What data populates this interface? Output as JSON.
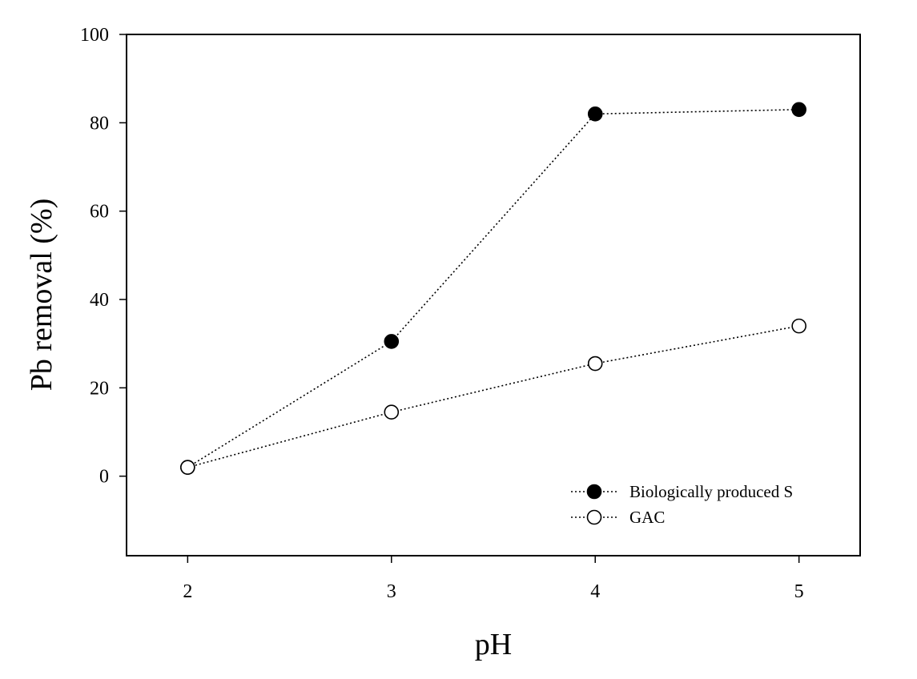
{
  "chart_data": {
    "type": "line",
    "title": "",
    "xlabel": "pH",
    "ylabel": "Pb removal (%)",
    "x": [
      2,
      3,
      4,
      5
    ],
    "x_ticks": [
      "2",
      "3",
      "4",
      "5"
    ],
    "y_ticks": [
      "0",
      "20",
      "40",
      "60",
      "80",
      "100"
    ],
    "xlim": [
      1.7,
      5.3
    ],
    "ylim": [
      -18,
      100
    ],
    "grid": false,
    "legend_position": "bottom-right",
    "series": [
      {
        "name": "Biologically produced S",
        "marker": "filled-circle",
        "line_style": "dotted",
        "color": "#000000",
        "values": [
          2,
          30.5,
          82,
          83
        ]
      },
      {
        "name": "GAC",
        "marker": "open-circle",
        "line_style": "dotted",
        "color": "#000000",
        "values": [
          2,
          14.5,
          25.5,
          34
        ]
      }
    ]
  }
}
